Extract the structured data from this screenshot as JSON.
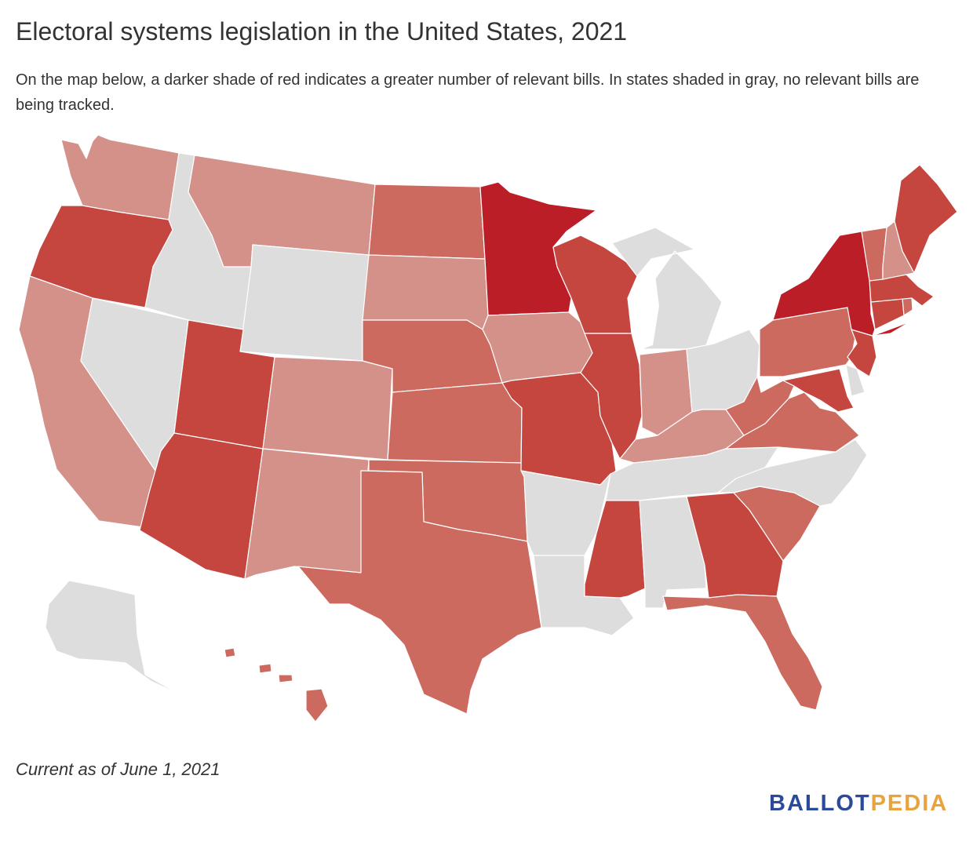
{
  "title": "Electoral systems legislation in the United States, 2021",
  "subtitle": "On the map below, a darker shade of red indicates a greater number of relevant bills. In states shaded in gray, no relevant bills are being tracked.",
  "footnote": "Current as of June 1, 2021",
  "logo": {
    "part1": "BALLOT",
    "part2": "PEDIA",
    "color1": "#2c4a9a",
    "color2": "#e8a33c"
  },
  "colors": {
    "none": "#dddddd",
    "level1": "#d4918a",
    "level2": "#cd6a60",
    "level3": "#c4463f",
    "level4": "#bc1e28"
  },
  "states": [
    {
      "id": "AK",
      "level": "none"
    },
    {
      "id": "AL",
      "level": "none"
    },
    {
      "id": "AR",
      "level": "none"
    },
    {
      "id": "AZ",
      "level": "level3"
    },
    {
      "id": "CA",
      "level": "level1"
    },
    {
      "id": "CO",
      "level": "level1"
    },
    {
      "id": "CT",
      "level": "level3"
    },
    {
      "id": "DE",
      "level": "none"
    },
    {
      "id": "FL",
      "level": "level2"
    },
    {
      "id": "GA",
      "level": "level3"
    },
    {
      "id": "HI",
      "level": "level2"
    },
    {
      "id": "IA",
      "level": "level1"
    },
    {
      "id": "ID",
      "level": "none"
    },
    {
      "id": "IL",
      "level": "level3"
    },
    {
      "id": "IN",
      "level": "level1"
    },
    {
      "id": "KS",
      "level": "level2"
    },
    {
      "id": "KY",
      "level": "level1"
    },
    {
      "id": "LA",
      "level": "none"
    },
    {
      "id": "MA",
      "level": "level3"
    },
    {
      "id": "MD",
      "level": "level3"
    },
    {
      "id": "ME",
      "level": "level3"
    },
    {
      "id": "MI",
      "level": "none"
    },
    {
      "id": "MN",
      "level": "level4"
    },
    {
      "id": "MO",
      "level": "level3"
    },
    {
      "id": "MS",
      "level": "level3"
    },
    {
      "id": "MT",
      "level": "level1"
    },
    {
      "id": "NC",
      "level": "none"
    },
    {
      "id": "ND",
      "level": "level2"
    },
    {
      "id": "NE",
      "level": "level2"
    },
    {
      "id": "NH",
      "level": "level1"
    },
    {
      "id": "NJ",
      "level": "level3"
    },
    {
      "id": "NM",
      "level": "level1"
    },
    {
      "id": "NV",
      "level": "none"
    },
    {
      "id": "NY",
      "level": "level4"
    },
    {
      "id": "OH",
      "level": "none"
    },
    {
      "id": "OK",
      "level": "level2"
    },
    {
      "id": "OR",
      "level": "level3"
    },
    {
      "id": "PA",
      "level": "level2"
    },
    {
      "id": "RI",
      "level": "level2"
    },
    {
      "id": "SC",
      "level": "level2"
    },
    {
      "id": "SD",
      "level": "level1"
    },
    {
      "id": "TN",
      "level": "none"
    },
    {
      "id": "TX",
      "level": "level2"
    },
    {
      "id": "UT",
      "level": "level3"
    },
    {
      "id": "VA",
      "level": "level2"
    },
    {
      "id": "VT",
      "level": "level2"
    },
    {
      "id": "WA",
      "level": "level1"
    },
    {
      "id": "WI",
      "level": "level3"
    },
    {
      "id": "WV",
      "level": "level2"
    },
    {
      "id": "WY",
      "level": "none"
    }
  ]
}
